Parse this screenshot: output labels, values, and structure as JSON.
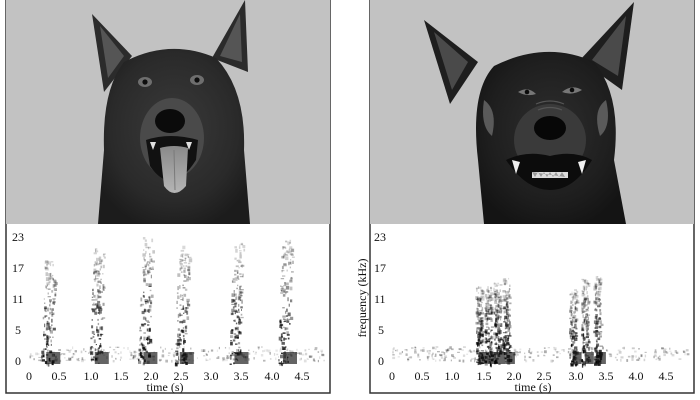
{
  "panels": [
    {
      "id": "left",
      "photo": {
        "subject": "dog-playful-open-mouth",
        "background": "#c2c2c2"
      },
      "spectrogram": {
        "y_ticks": [
          "23",
          "17",
          "11",
          "5",
          "0"
        ],
        "x_ticks": [
          "0",
          "0.5",
          "1.0",
          "1.5",
          "2.0",
          "2.5",
          "3.0",
          "3.5",
          "4.0",
          "4.5"
        ],
        "xlabel": "time (s)",
        "ylabel": "",
        "bursts_s": [
          0.4,
          1.2,
          2.0,
          2.6,
          3.5,
          4.3
        ]
      }
    },
    {
      "id": "right",
      "photo": {
        "subject": "dog-aggressive-bared-teeth",
        "background": "#c2c2c2"
      },
      "spectrogram": {
        "y_ticks": [
          "23",
          "17",
          "11",
          "5",
          "0"
        ],
        "x_ticks": [
          "0",
          "0.5",
          "1.0",
          "1.5",
          "2.0",
          "2.5",
          "3.0",
          "3.5",
          "4.0",
          "4.5"
        ],
        "xlabel": "time (s)",
        "ylabel": "frequency (kHz)",
        "bursts_s": [
          1.5,
          1.65,
          1.8,
          1.95,
          3.05,
          3.25,
          3.45
        ]
      }
    }
  ],
  "colors": {
    "ink": "#111111",
    "frame": "#333333",
    "photo_bg": "#c2c2c2"
  }
}
